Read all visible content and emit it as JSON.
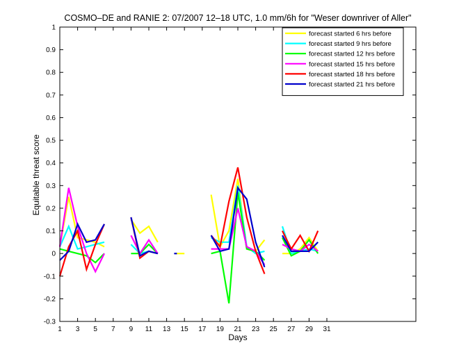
{
  "chart_data": {
    "type": "line",
    "title": "COSMO–DE and RANIE 2: 07/2007 12–18 UTC, 1.0 mm/6h for \"Weser downriver of Aller\"",
    "xlabel": "Days",
    "ylabel": "Equitable threat score",
    "xlim": [
      1,
      41
    ],
    "ylim": [
      -0.3,
      1
    ],
    "xticks": [
      1,
      3,
      5,
      7,
      9,
      11,
      13,
      15,
      17,
      19,
      21,
      23,
      25,
      27,
      29,
      31
    ],
    "yticks": [
      -0.3,
      -0.2,
      -0.1,
      0,
      0.1,
      0.2,
      0.3,
      0.4,
      0.5,
      0.6,
      0.7,
      0.8,
      0.9,
      1
    ],
    "ytick_labels": [
      "-0.3",
      "-0.2",
      "-0.1",
      "0",
      "0.1",
      "0.2",
      "0.3",
      "0.4",
      "0.5",
      "0.6",
      "0.7",
      "0.8",
      "0.9",
      "1"
    ],
    "grid": false,
    "legend_position": "top-right",
    "series": [
      {
        "name": "forecast started 6 hrs before",
        "color": "#ffff00",
        "values": [
          0.03,
          0.25,
          0.07,
          0.06,
          0.05,
          0.03,
          null,
          null,
          0.15,
          0.09,
          0.12,
          0.05,
          null,
          0.0,
          0.0,
          null,
          null,
          0.26,
          0.03,
          0.1,
          0.33,
          0.02,
          0.01,
          0.06,
          null,
          0.0,
          0.0,
          0.02,
          0.07,
          0.01
        ]
      },
      {
        "name": "forecast started 9 hrs before",
        "color": "#00ffff",
        "values": [
          0.03,
          0.12,
          0.02,
          0.03,
          0.04,
          0.05,
          null,
          null,
          0.04,
          0.0,
          0.01,
          0.0,
          null,
          null,
          null,
          null,
          null,
          0.07,
          0.05,
          0.05,
          0.3,
          0.03,
          0.0,
          0.01,
          null,
          0.12,
          0.0,
          0.01,
          0.02,
          0.01
        ]
      },
      {
        "name": "forecast started 12 hrs before",
        "color": "#00ff00",
        "values": [
          0.02,
          0.01,
          0.0,
          -0.01,
          -0.04,
          0.0,
          null,
          null,
          0.0,
          0.0,
          0.04,
          0.0,
          null,
          null,
          null,
          null,
          null,
          0.0,
          0.01,
          -0.22,
          0.27,
          0.02,
          0.01,
          -0.03,
          null,
          0.07,
          -0.01,
          0.01,
          0.06,
          0.0
        ]
      },
      {
        "name": "forecast started 15 hrs before",
        "color": "#ff00ff",
        "values": [
          0.03,
          0.29,
          0.12,
          0.0,
          -0.08,
          0.0,
          null,
          null,
          0.08,
          0.0,
          0.06,
          0.0,
          null,
          null,
          null,
          null,
          null,
          0.02,
          0.02,
          0.02,
          0.2,
          0.03,
          0.01,
          -0.05,
          null,
          0.04,
          0.02,
          0.01,
          0.04,
          0.01
        ]
      },
      {
        "name": "forecast started 18 hrs before",
        "color": "#ff0000",
        "values": [
          -0.1,
          0.03,
          0.1,
          -0.07,
          0.04,
          0.13,
          null,
          null,
          0.16,
          -0.02,
          0.01,
          0.0,
          null,
          null,
          null,
          null,
          null,
          0.08,
          0.03,
          0.23,
          0.38,
          0.16,
          0.01,
          -0.09,
          null,
          0.1,
          0.02,
          0.08,
          0.01,
          0.1
        ]
      },
      {
        "name": "forecast started 21 hrs before",
        "color": "#0000cc",
        "values": [
          -0.03,
          0.01,
          0.13,
          0.05,
          0.06,
          0.13,
          null,
          null,
          0.16,
          -0.01,
          0.01,
          0.0,
          null,
          0.0,
          null,
          null,
          null,
          0.08,
          0.01,
          0.02,
          0.29,
          0.24,
          0.05,
          -0.06,
          null,
          0.08,
          0.01,
          0.01,
          0.01,
          0.05
        ]
      }
    ],
    "x": [
      1,
      2,
      3,
      4,
      5,
      6,
      7,
      8,
      9,
      10,
      11,
      12,
      13,
      14,
      15,
      16,
      17,
      18,
      19,
      20,
      21,
      22,
      23,
      24,
      25,
      26,
      27,
      28,
      29,
      30
    ]
  }
}
